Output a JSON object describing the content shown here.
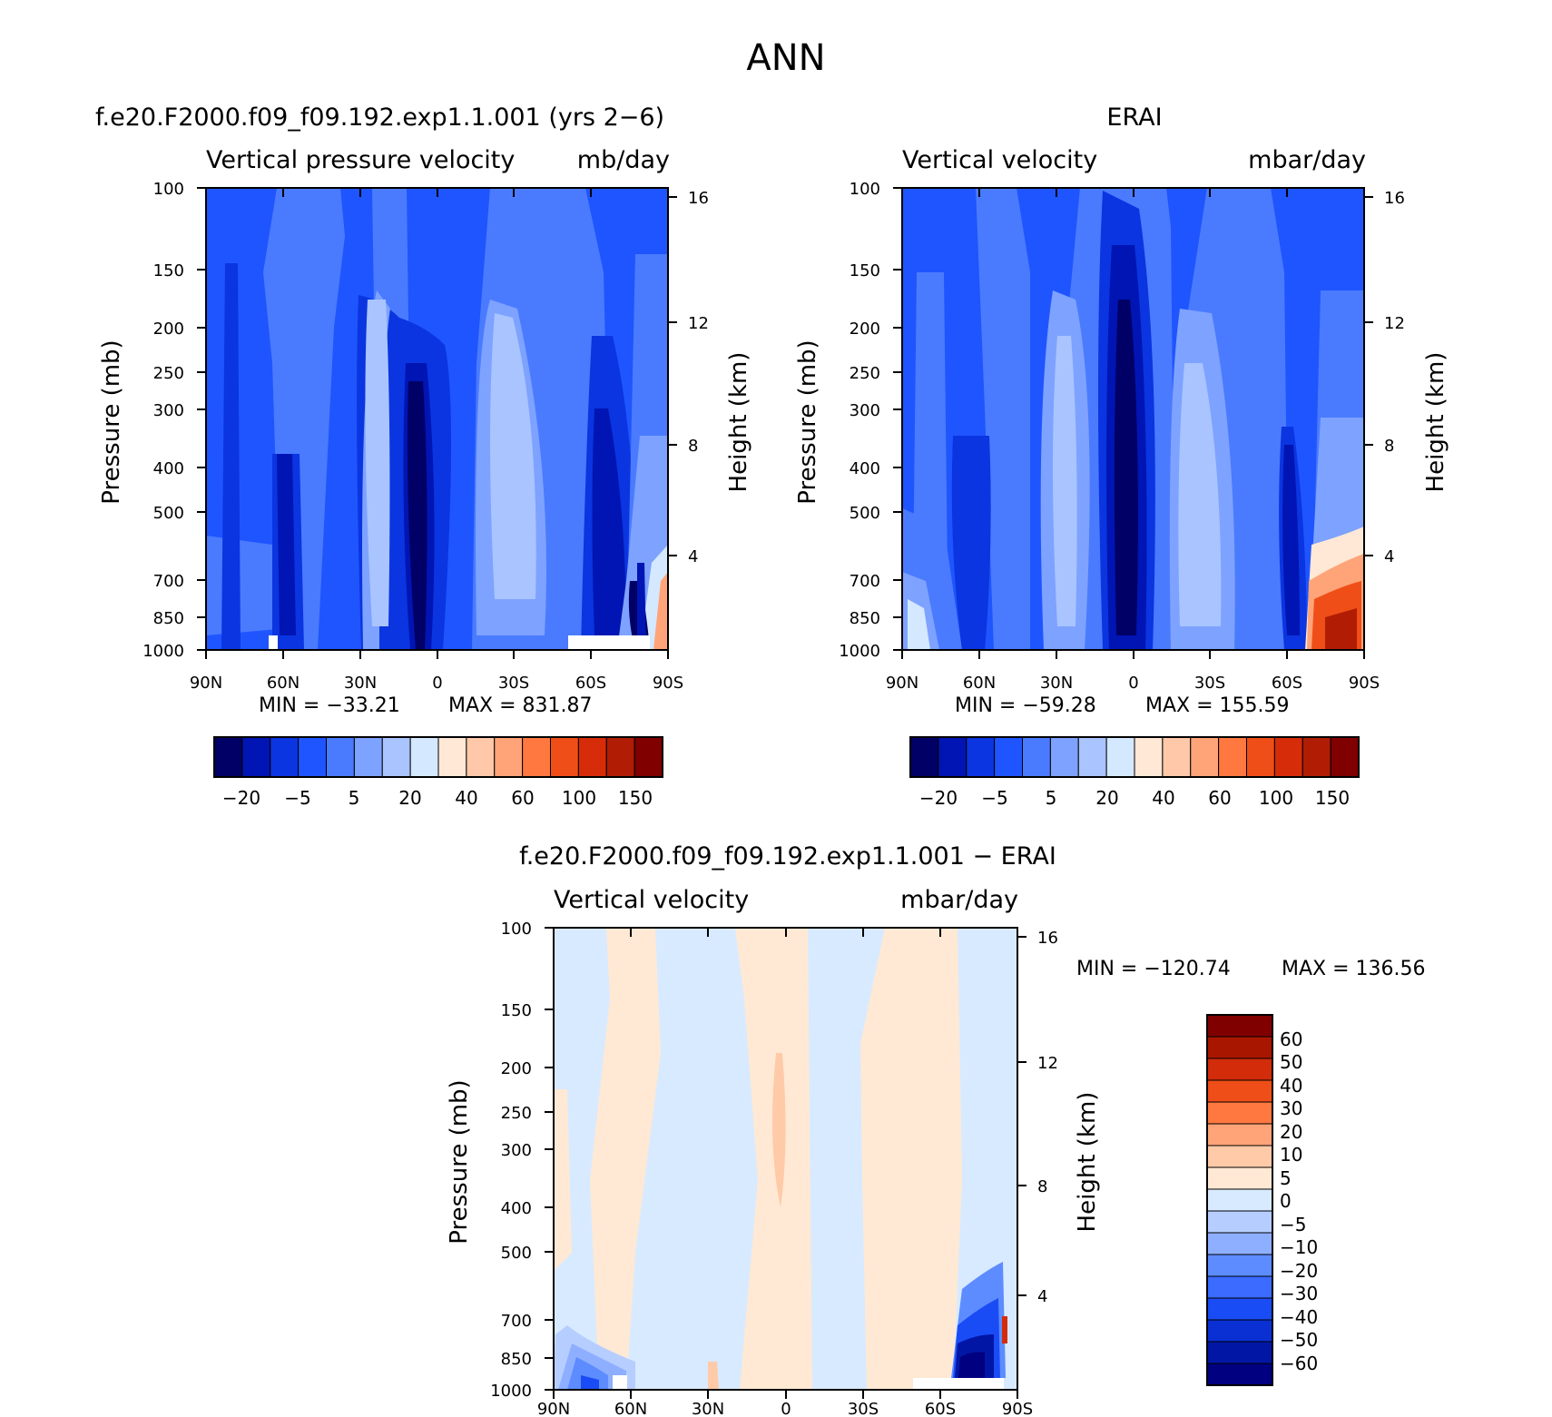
{
  "figure": {
    "title": "ANN"
  },
  "colors": {
    "abs_levels": [
      "#000066",
      "#0015b3",
      "#0a35e0",
      "#1f55ff",
      "#4a7bff",
      "#7ea2ff",
      "#a9c4ff",
      "#d4e8ff",
      "#ffe8d6",
      "#ffc8a8",
      "#ffa478",
      "#ff7840",
      "#f04e18",
      "#d62c0a",
      "#b01d04",
      "#800000"
    ],
    "diff_levels": [
      "#000080",
      "#0216a6",
      "#0a30d4",
      "#1a4cf5",
      "#3b6bff",
      "#5c8cff",
      "#8eafff",
      "#b6ceff",
      "#d8eaff",
      "#ffe9d4",
      "#ffcaa8",
      "#ffa478",
      "#ff7840",
      "#f04e18",
      "#d22c0a",
      "#a81600",
      "#800000"
    ]
  },
  "chart_data": [
    {
      "id": "model",
      "type": "heatmap",
      "title": "f.e20.F2000.f09_f09.192.exp1.1.001 (yrs 2−6)",
      "subtitle_left": "Vertical pressure velocity",
      "subtitle_right": "mb/day",
      "ylabel": "Pressure (mb)",
      "y2label": "Height (km)",
      "xticks": [
        "90N",
        "60N",
        "30N",
        "0",
        "30S",
        "60S",
        "90S"
      ],
      "yticks": [
        100,
        150,
        200,
        250,
        300,
        400,
        500,
        700,
        850,
        1000
      ],
      "y2ticks": [
        16,
        12,
        8,
        4
      ],
      "min_label": "MIN = −33.21",
      "max_label": "MAX = 831.87",
      "colorbar_labels": [
        "−20",
        "−5",
        "5",
        "20",
        "40",
        "60",
        "100",
        "150"
      ]
    },
    {
      "id": "obs",
      "type": "heatmap",
      "title": "ERAI",
      "subtitle_left": "Vertical velocity",
      "subtitle_right": "mbar/day",
      "ylabel": "Pressure (mb)",
      "y2label": "Height (km)",
      "xticks": [
        "90N",
        "60N",
        "30N",
        "0",
        "30S",
        "60S",
        "90S"
      ],
      "yticks": [
        100,
        150,
        200,
        250,
        300,
        400,
        500,
        700,
        850,
        1000
      ],
      "y2ticks": [
        16,
        12,
        8,
        4
      ],
      "min_label": "MIN = −59.28",
      "max_label": "MAX = 155.59",
      "colorbar_labels": [
        "−20",
        "−5",
        "5",
        "20",
        "40",
        "60",
        "100",
        "150"
      ]
    },
    {
      "id": "diff",
      "type": "heatmap",
      "title": "f.e20.F2000.f09_f09.192.exp1.1.001 − ERAI",
      "subtitle_left": "Vertical velocity",
      "subtitle_right": "mbar/day",
      "ylabel": "Pressure (mb)",
      "y2label": "Height (km)",
      "xticks": [
        "90N",
        "60N",
        "30N",
        "0",
        "30S",
        "60S",
        "90S"
      ],
      "yticks": [
        100,
        150,
        200,
        250,
        300,
        400,
        500,
        700,
        850,
        1000
      ],
      "y2ticks": [
        16,
        12,
        8,
        4
      ],
      "min_label": "MIN = −120.74",
      "max_label": "MAX = 136.56",
      "colorbar_labels": [
        "60",
        "50",
        "40",
        "30",
        "20",
        "10",
        "5",
        "0",
        "−5",
        "−10",
        "−20",
        "−30",
        "−40",
        "−50",
        "−60"
      ]
    }
  ]
}
